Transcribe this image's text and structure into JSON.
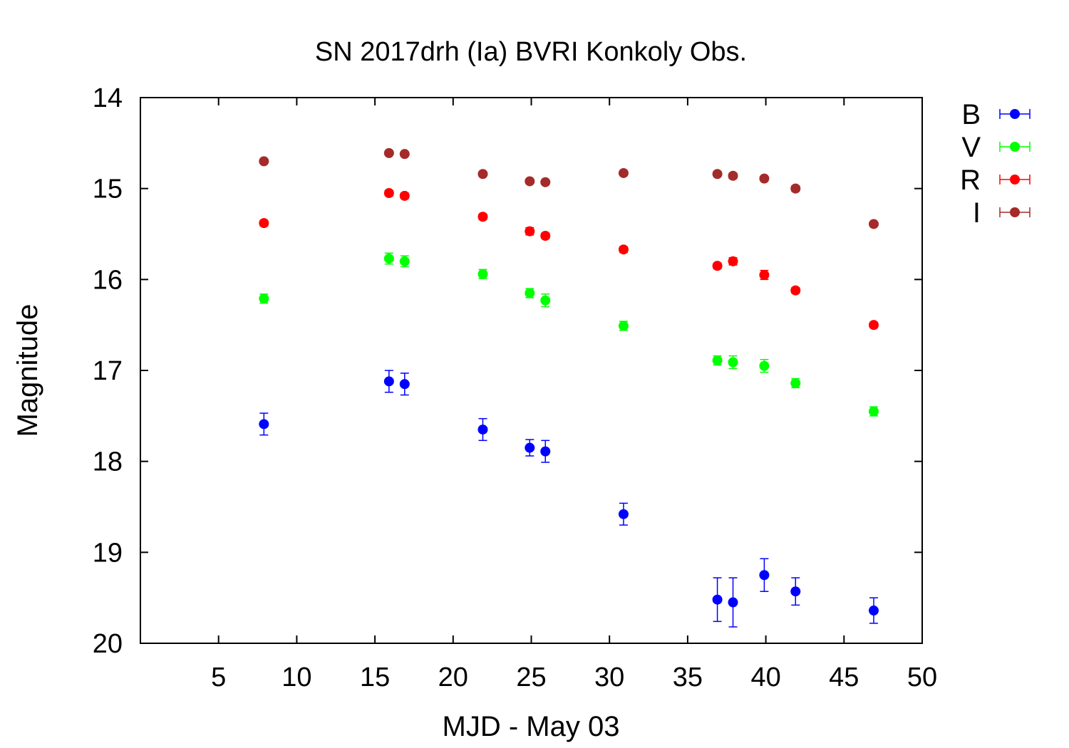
{
  "chart_data": {
    "type": "scatter",
    "title": "SN 2017drh (Ia) BVRI Konkoly Obs.",
    "xlabel": "MJD - May 03",
    "ylabel": "Magnitude",
    "xlim": [
      0,
      50
    ],
    "ylim": [
      14,
      20
    ],
    "y_inverted": true,
    "xticks": [
      5,
      10,
      15,
      20,
      25,
      30,
      35,
      40,
      45,
      50
    ],
    "yticks": [
      14,
      15,
      16,
      17,
      18,
      19,
      20
    ],
    "grid": false,
    "legend_position": "outside-top-right",
    "series": [
      {
        "name": "B",
        "color": "#0000ff",
        "points": [
          {
            "x": 7.9,
            "y": 17.59,
            "err": 0.12
          },
          {
            "x": 15.9,
            "y": 17.12,
            "err": 0.12
          },
          {
            "x": 16.9,
            "y": 17.15,
            "err": 0.12
          },
          {
            "x": 21.9,
            "y": 17.65,
            "err": 0.12
          },
          {
            "x": 24.9,
            "y": 17.85,
            "err": 0.09
          },
          {
            "x": 25.9,
            "y": 17.89,
            "err": 0.12
          },
          {
            "x": 30.9,
            "y": 18.58,
            "err": 0.12
          },
          {
            "x": 36.9,
            "y": 19.52,
            "err": 0.24
          },
          {
            "x": 37.9,
            "y": 19.55,
            "err": 0.27
          },
          {
            "x": 39.9,
            "y": 19.25,
            "err": 0.18
          },
          {
            "x": 41.9,
            "y": 19.43,
            "err": 0.15
          },
          {
            "x": 46.9,
            "y": 19.64,
            "err": 0.14
          }
        ]
      },
      {
        "name": "V",
        "color": "#00ff00",
        "points": [
          {
            "x": 7.9,
            "y": 16.21,
            "err": 0.05
          },
          {
            "x": 15.9,
            "y": 15.77,
            "err": 0.06
          },
          {
            "x": 16.9,
            "y": 15.8,
            "err": 0.06
          },
          {
            "x": 21.9,
            "y": 15.94,
            "err": 0.05
          },
          {
            "x": 24.9,
            "y": 16.15,
            "err": 0.05
          },
          {
            "x": 25.9,
            "y": 16.23,
            "err": 0.07
          },
          {
            "x": 30.9,
            "y": 16.51,
            "err": 0.05
          },
          {
            "x": 36.9,
            "y": 16.89,
            "err": 0.05
          },
          {
            "x": 37.9,
            "y": 16.91,
            "err": 0.07
          },
          {
            "x": 39.9,
            "y": 16.95,
            "err": 0.07
          },
          {
            "x": 41.9,
            "y": 17.14,
            "err": 0.05
          },
          {
            "x": 46.9,
            "y": 17.45,
            "err": 0.05
          }
        ]
      },
      {
        "name": "R",
        "color": "#ff0000",
        "points": [
          {
            "x": 7.9,
            "y": 15.38,
            "err": 0.03
          },
          {
            "x": 15.9,
            "y": 15.05,
            "err": 0.03
          },
          {
            "x": 16.9,
            "y": 15.08,
            "err": 0.03
          },
          {
            "x": 21.9,
            "y": 15.31,
            "err": 0.03
          },
          {
            "x": 24.9,
            "y": 15.47,
            "err": 0.04
          },
          {
            "x": 25.9,
            "y": 15.52,
            "err": 0.03
          },
          {
            "x": 30.9,
            "y": 15.67,
            "err": 0.03
          },
          {
            "x": 36.9,
            "y": 15.85,
            "err": 0.03
          },
          {
            "x": 37.9,
            "y": 15.8,
            "err": 0.04
          },
          {
            "x": 39.9,
            "y": 15.95,
            "err": 0.05
          },
          {
            "x": 41.9,
            "y": 16.12,
            "err": 0.03
          },
          {
            "x": 46.9,
            "y": 16.5,
            "err": 0.03
          }
        ]
      },
      {
        "name": "I",
        "color": "#a52a2a",
        "points": [
          {
            "x": 7.9,
            "y": 14.7,
            "err": 0.02
          },
          {
            "x": 15.9,
            "y": 14.61,
            "err": 0.02
          },
          {
            "x": 16.9,
            "y": 14.62,
            "err": 0.02
          },
          {
            "x": 21.9,
            "y": 14.84,
            "err": 0.02
          },
          {
            "x": 24.9,
            "y": 14.92,
            "err": 0.02
          },
          {
            "x": 25.9,
            "y": 14.93,
            "err": 0.02
          },
          {
            "x": 30.9,
            "y": 14.83,
            "err": 0.02
          },
          {
            "x": 36.9,
            "y": 14.84,
            "err": 0.02
          },
          {
            "x": 37.9,
            "y": 14.86,
            "err": 0.03
          },
          {
            "x": 39.9,
            "y": 14.89,
            "err": 0.02
          },
          {
            "x": 41.9,
            "y": 15.0,
            "err": 0.03
          },
          {
            "x": 46.9,
            "y": 15.39,
            "err": 0.02
          }
        ]
      }
    ]
  }
}
